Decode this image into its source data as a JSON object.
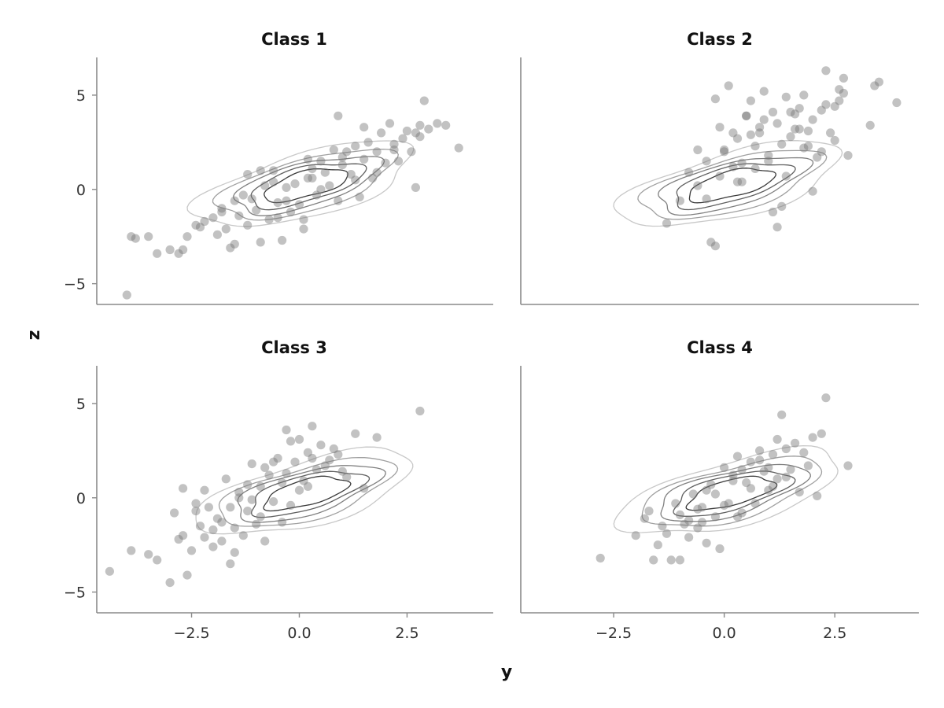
{
  "figure": {
    "xlabel": "y",
    "ylabel": "z"
  },
  "chart_data": [
    {
      "type": "scatter",
      "title": "Class 1",
      "xlabel": "y",
      "ylabel": "z",
      "xlim": [
        -4.7,
        4.5
      ],
      "ylim": [
        -6.1,
        7.0
      ],
      "xticks": [],
      "yticks": [
        -5,
        0,
        5
      ],
      "point_color": "#777777",
      "contour_colors": [
        "#c8c8c8",
        "#a0a0a0",
        "#808080",
        "#606060",
        "#3a3a3a"
      ],
      "x": [
        -4.0,
        -3.9,
        -3.8,
        -3.5,
        -3.3,
        -3.0,
        -2.8,
        -2.7,
        -2.6,
        -2.4,
        -2.3,
        -2.2,
        -2.0,
        -1.9,
        -1.8,
        -1.7,
        -1.6,
        -1.5,
        -1.4,
        -1.3,
        -1.2,
        -1.1,
        -1.0,
        -0.9,
        -0.8,
        -0.7,
        -0.6,
        -0.5,
        -0.4,
        -0.3,
        -0.2,
        -0.1,
        0.0,
        0.1,
        0.2,
        0.3,
        0.4,
        0.5,
        0.6,
        0.7,
        0.8,
        0.9,
        1.0,
        1.1,
        1.2,
        1.3,
        1.4,
        1.5,
        1.6,
        1.7,
        1.8,
        1.9,
        2.0,
        2.1,
        2.2,
        2.3,
        2.4,
        2.5,
        2.6,
        2.7,
        2.8,
        2.9,
        3.0,
        3.2,
        3.4,
        3.7,
        -1.2,
        -0.6,
        0.1,
        0.9,
        1.5,
        -0.9,
        -0.3,
        0.3,
        1.0,
        -1.5,
        -0.5,
        0.5,
        1.8,
        2.7,
        -1.8,
        0.2,
        1.3,
        2.2,
        2.8
      ],
      "y": [
        -5.6,
        -2.5,
        -2.6,
        -2.5,
        -3.4,
        -3.2,
        -3.4,
        -3.2,
        -2.5,
        -1.9,
        -2.0,
        -1.7,
        -1.5,
        -2.4,
        -1.2,
        -2.1,
        -3.1,
        -2.9,
        -1.4,
        -0.3,
        -1.9,
        -0.5,
        -1.1,
        -2.8,
        0.2,
        -1.6,
        0.4,
        -0.7,
        -2.7,
        0.1,
        -1.2,
        0.3,
        -0.8,
        -2.1,
        0.6,
        1.1,
        -0.3,
        1.5,
        0.9,
        0.2,
        2.1,
        -0.6,
        1.3,
        2.0,
        0.8,
        2.3,
        -0.4,
        1.6,
        2.5,
        0.6,
        2.0,
        3.0,
        1.4,
        3.5,
        2.4,
        1.5,
        2.7,
        3.1,
        2.0,
        0.1,
        3.4,
        4.7,
        3.2,
        3.5,
        3.4,
        2.2,
        0.8,
        1.0,
        -1.6,
        3.9,
        3.3,
        1.0,
        -0.6,
        0.6,
        1.7,
        -0.6,
        -1.5,
        0.0,
        0.9,
        3.0,
        -1.0,
        1.6,
        0.5,
        2.1,
        2.8
      ]
    },
    {
      "type": "scatter",
      "title": "Class 2",
      "xlabel": "y",
      "ylabel": "z",
      "xlim": [
        -4.6,
        4.4
      ],
      "ylim": [
        -6.1,
        7.0
      ],
      "xticks": [],
      "yticks": [],
      "point_color": "#777777",
      "contour_colors": [
        "#c8c8c8",
        "#a0a0a0",
        "#808080",
        "#606060",
        "#3a3a3a"
      ],
      "x": [
        -1.3,
        -1.0,
        -0.8,
        -0.6,
        -0.4,
        -0.3,
        -0.2,
        -0.1,
        0.0,
        0.1,
        0.2,
        0.3,
        0.4,
        0.5,
        0.6,
        0.7,
        0.8,
        0.9,
        1.0,
        1.1,
        1.2,
        1.3,
        1.4,
        1.5,
        1.6,
        1.7,
        1.8,
        1.9,
        2.0,
        2.1,
        2.2,
        2.3,
        2.4,
        2.5,
        2.6,
        2.7,
        2.8,
        3.3,
        3.4,
        3.5,
        3.9,
        -0.2,
        0.0,
        0.5,
        0.8,
        1.1,
        1.3,
        1.6,
        1.9,
        2.2,
        -0.6,
        -0.1,
        0.4,
        0.9,
        1.2,
        1.7,
        2.0,
        2.5,
        2.6,
        2.7,
        -0.4,
        0.3,
        0.6,
        1.0,
        1.4,
        1.8,
        2.3,
        0.2,
        0.7,
        1.5
      ],
      "y": [
        -1.8,
        -0.6,
        0.9,
        0.2,
        1.5,
        -2.8,
        -3.0,
        3.3,
        2.0,
        5.5,
        1.2,
        2.7,
        0.4,
        3.9,
        4.7,
        2.3,
        3.0,
        5.2,
        1.8,
        4.1,
        3.5,
        -0.9,
        4.9,
        2.8,
        3.2,
        4.3,
        5.0,
        2.3,
        3.7,
        1.7,
        4.2,
        6.3,
        3.0,
        4.4,
        5.3,
        5.9,
        1.8,
        3.4,
        5.5,
        5.7,
        4.6,
        4.8,
        2.1,
        3.9,
        3.3,
        -1.2,
        2.4,
        4.0,
        3.1,
        2.0,
        2.1,
        0.7,
        1.4,
        3.7,
        -2.0,
        3.2,
        -0.1,
        2.6,
        4.7,
        5.1,
        -0.5,
        0.4,
        2.9,
        1.5,
        0.7,
        2.2,
        4.5,
        3.0,
        1.1,
        4.1
      ]
    },
    {
      "type": "scatter",
      "title": "Class 3",
      "xlabel": "y",
      "ylabel": "z",
      "xlim": [
        -4.7,
        4.5
      ],
      "ylim": [
        -6.1,
        7.0
      ],
      "xticks": [
        -2.5,
        0.0,
        2.5
      ],
      "yticks": [
        -5,
        0,
        5
      ],
      "point_color": "#777777",
      "contour_colors": [
        "#c8c8c8",
        "#a0a0a0",
        "#808080",
        "#606060",
        "#3a3a3a"
      ],
      "x": [
        -4.4,
        -3.9,
        -3.5,
        -3.3,
        -3.0,
        -2.9,
        -2.8,
        -2.7,
        -2.6,
        -2.5,
        -2.4,
        -2.3,
        -2.2,
        -2.1,
        -2.0,
        -1.9,
        -1.8,
        -1.7,
        -1.6,
        -1.5,
        -1.4,
        -1.3,
        -1.2,
        -1.1,
        -1.0,
        -0.9,
        -0.8,
        -0.7,
        -0.6,
        -0.5,
        -0.4,
        -0.3,
        -0.2,
        -0.1,
        0.0,
        0.1,
        0.2,
        0.3,
        0.4,
        0.5,
        0.7,
        0.9,
        1.1,
        1.3,
        1.5,
        1.8,
        2.8,
        -2.7,
        -2.2,
        -1.8,
        -1.5,
        -1.2,
        -0.8,
        -0.4,
        0.0,
        0.3,
        0.6,
        1.0,
        -2.4,
        -2.0,
        -1.6,
        -1.1,
        -0.6,
        -0.2,
        0.2,
        0.8,
        -1.4,
        -0.9,
        -0.3
      ],
      "y": [
        -3.9,
        -2.8,
        -3.0,
        -3.3,
        -4.5,
        -0.8,
        -2.2,
        -2.0,
        -4.1,
        -2.8,
        -0.3,
        -1.5,
        -2.1,
        -0.5,
        -1.7,
        -1.1,
        -2.3,
        1.0,
        -3.5,
        -1.6,
        0.3,
        -2.0,
        -0.7,
        1.8,
        -1.4,
        0.6,
        -2.3,
        1.2,
        -0.2,
        2.1,
        0.8,
        3.6,
        -0.4,
        1.9,
        3.1,
        0.9,
        2.4,
        3.8,
        1.5,
        2.8,
        2.0,
        2.3,
        1.1,
        3.4,
        0.5,
        3.2,
        4.6,
        0.5,
        0.4,
        -1.3,
        -2.9,
        0.7,
        1.6,
        -1.3,
        0.4,
        2.1,
        1.7,
        1.4,
        -0.7,
        -2.6,
        -0.5,
        -0.1,
        1.9,
        3.0,
        0.6,
        2.6,
        0.0,
        -1.0,
        1.3
      ]
    },
    {
      "type": "scatter",
      "title": "Class 4",
      "xlabel": "y",
      "ylabel": "z",
      "xlim": [
        -4.6,
        4.4
      ],
      "ylim": [
        -6.1,
        7.0
      ],
      "xticks": [
        -2.5,
        0.0,
        2.5
      ],
      "yticks": [],
      "point_color": "#777777",
      "contour_colors": [
        "#c8c8c8",
        "#a0a0a0",
        "#808080",
        "#606060",
        "#3a3a3a"
      ],
      "x": [
        -2.8,
        -2.0,
        -1.8,
        -1.6,
        -1.5,
        -1.3,
        -1.2,
        -1.1,
        -1.0,
        -0.9,
        -0.8,
        -0.7,
        -0.6,
        -0.5,
        -0.4,
        -0.3,
        -0.2,
        -0.1,
        0.0,
        0.1,
        0.2,
        0.3,
        0.4,
        0.5,
        0.6,
        0.7,
        0.8,
        0.9,
        1.0,
        1.1,
        1.2,
        1.3,
        1.4,
        1.5,
        1.6,
        1.7,
        1.8,
        1.9,
        2.0,
        2.1,
        2.2,
        2.3,
        2.8,
        -1.4,
        -1.0,
        -0.6,
        -0.2,
        0.2,
        0.6,
        1.0,
        1.4,
        -0.8,
        -0.4,
        0.0,
        0.4,
        0.8,
        1.2,
        -1.7,
        -0.5,
        0.3,
        1.1
      ],
      "y": [
        -3.2,
        -2.0,
        -1.1,
        -3.3,
        -2.5,
        -1.9,
        -3.3,
        -0.3,
        -3.3,
        -1.4,
        -2.1,
        0.2,
        -1.6,
        -0.5,
        -2.4,
        0.7,
        -1.0,
        -2.7,
        1.6,
        -0.3,
        1.2,
        2.2,
        -0.8,
        0.8,
        1.9,
        -0.3,
        2.5,
        1.4,
        0.4,
        2.3,
        1.0,
        4.4,
        2.6,
        1.5,
        2.9,
        0.3,
        2.4,
        1.7,
        3.2,
        0.1,
        3.4,
        5.3,
        1.7,
        -1.5,
        -0.9,
        -0.6,
        0.2,
        0.9,
        0.5,
        1.6,
        1.1,
        -1.2,
        0.4,
        -0.4,
        1.5,
        2.0,
        3.1,
        -0.7,
        -1.3,
        -1.0,
        0.6
      ]
    }
  ]
}
